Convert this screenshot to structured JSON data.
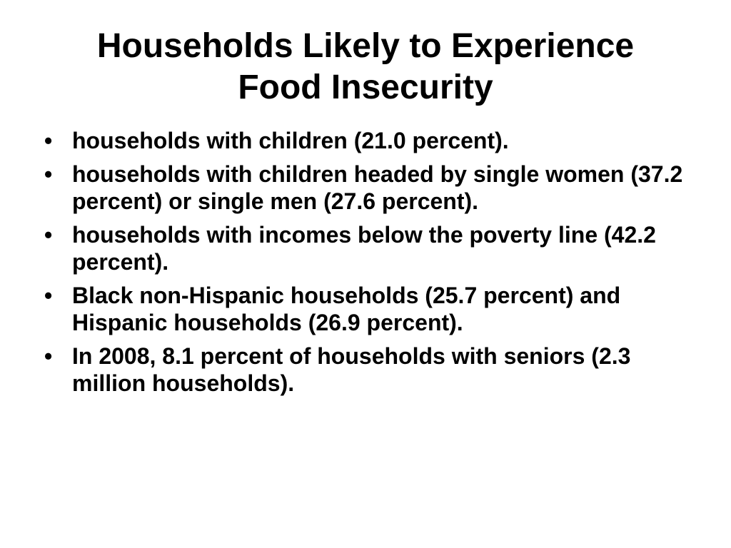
{
  "slide": {
    "title_line1": "Households Likely to Experience",
    "title_line2": "Food Insecurity",
    "bullet_char": "•",
    "bullets": [
      "households with children (21.0 percent).",
      "households with children headed by single women (37.2 percent) or single men (27.6 percent).",
      "households with incomes below the poverty line (42.2 percent).",
      "Black non-Hispanic households (25.7 percent) and Hispanic households (26.9 percent).",
      "In 2008, 8.1 percent of households with seniors (2.3 million households)."
    ]
  }
}
